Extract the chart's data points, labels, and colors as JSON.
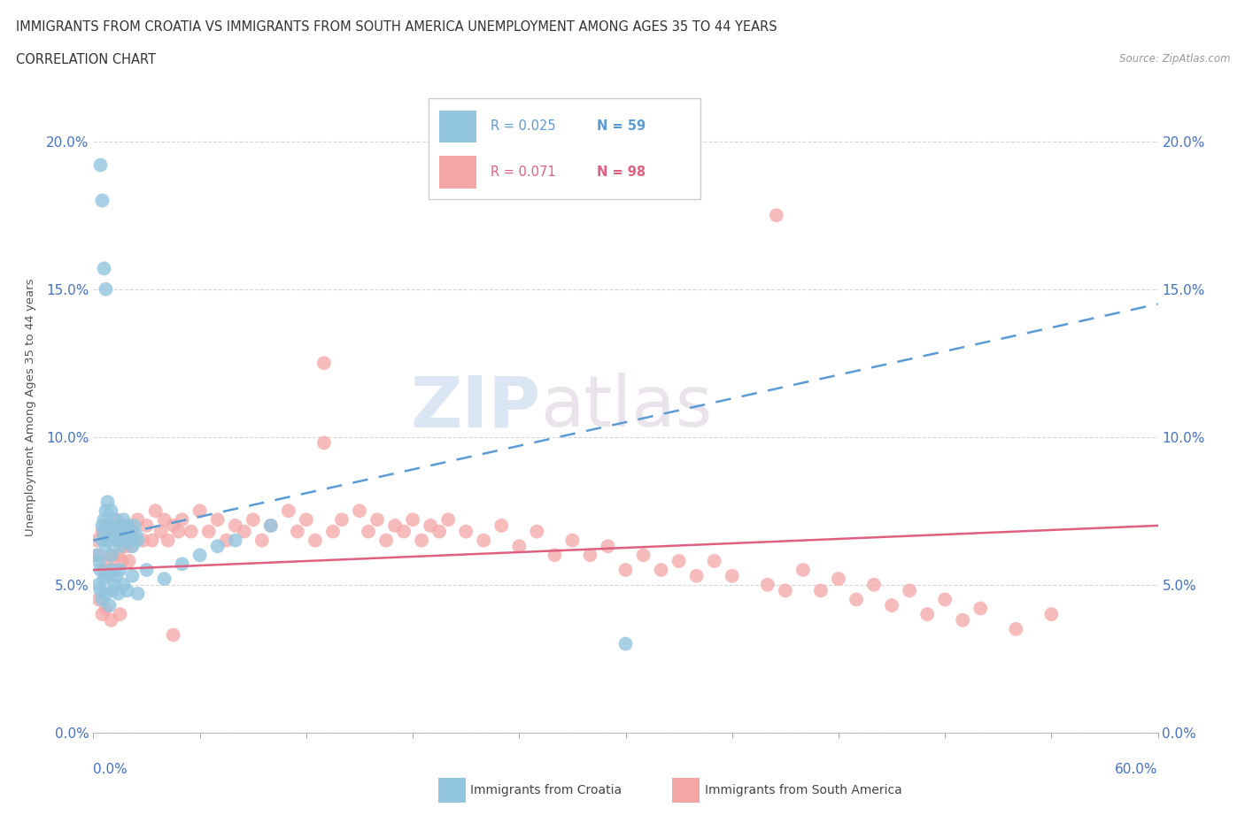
{
  "title_line1": "IMMIGRANTS FROM CROATIA VS IMMIGRANTS FROM SOUTH AMERICA UNEMPLOYMENT AMONG AGES 35 TO 44 YEARS",
  "title_line2": "CORRELATION CHART",
  "source_text": "Source: ZipAtlas.com",
  "ylabel": "Unemployment Among Ages 35 to 44 years",
  "legend_croatia": "Immigrants from Croatia",
  "legend_south_america": "Immigrants from South America",
  "r_croatia": "0.025",
  "n_croatia": "59",
  "r_south_america": "0.071",
  "n_south_america": "98",
  "croatia_color": "#92c5de",
  "south_america_color": "#f4a6a6",
  "croatia_line_color": "#5b9bd5",
  "south_america_line_color": "#e06080",
  "xlim": [
    0.0,
    0.6
  ],
  "ylim": [
    0.0,
    0.22
  ],
  "yticks": [
    0.0,
    0.05,
    0.1,
    0.15,
    0.2
  ],
  "ytick_labels": [
    "0.0%",
    "5.0%",
    "10.0%",
    "15.0%",
    "20.0%"
  ],
  "cr_line_x0": 0.0,
  "cr_line_y0": 0.065,
  "cr_line_x1": 0.6,
  "cr_line_y1": 0.145,
  "sa_line_x0": 0.0,
  "sa_line_y0": 0.055,
  "sa_line_x1": 0.6,
  "sa_line_y1": 0.07,
  "cr_x": [
    0.002,
    0.003,
    0.004,
    0.005,
    0.005,
    0.006,
    0.006,
    0.007,
    0.007,
    0.008,
    0.008,
    0.009,
    0.01,
    0.01,
    0.011,
    0.012,
    0.013,
    0.014,
    0.015,
    0.015,
    0.016,
    0.017,
    0.018,
    0.019,
    0.02,
    0.021,
    0.022,
    0.023,
    0.024,
    0.025,
    0.003,
    0.004,
    0.005,
    0.006,
    0.007,
    0.008,
    0.009,
    0.01,
    0.011,
    0.012,
    0.013,
    0.014,
    0.015,
    0.017,
    0.019,
    0.022,
    0.025,
    0.03,
    0.04,
    0.05,
    0.06,
    0.07,
    0.08,
    0.1,
    0.004,
    0.005,
    0.006,
    0.007,
    0.3
  ],
  "cr_y": [
    0.06,
    0.058,
    0.055,
    0.07,
    0.065,
    0.072,
    0.068,
    0.075,
    0.063,
    0.078,
    0.065,
    0.07,
    0.06,
    0.075,
    0.067,
    0.072,
    0.068,
    0.065,
    0.07,
    0.063,
    0.068,
    0.072,
    0.065,
    0.07,
    0.068,
    0.065,
    0.063,
    0.07,
    0.067,
    0.065,
    0.05,
    0.048,
    0.045,
    0.052,
    0.047,
    0.053,
    0.043,
    0.055,
    0.048,
    0.05,
    0.053,
    0.047,
    0.055,
    0.05,
    0.048,
    0.053,
    0.047,
    0.055,
    0.052,
    0.057,
    0.06,
    0.063,
    0.065,
    0.07,
    0.192,
    0.18,
    0.157,
    0.15,
    0.03
  ],
  "sa_x": [
    0.002,
    0.003,
    0.005,
    0.006,
    0.007,
    0.008,
    0.009,
    0.01,
    0.011,
    0.012,
    0.013,
    0.014,
    0.015,
    0.016,
    0.017,
    0.018,
    0.019,
    0.02,
    0.021,
    0.022,
    0.025,
    0.028,
    0.03,
    0.033,
    0.035,
    0.038,
    0.04,
    0.042,
    0.045,
    0.048,
    0.05,
    0.055,
    0.06,
    0.065,
    0.07,
    0.075,
    0.08,
    0.085,
    0.09,
    0.095,
    0.1,
    0.11,
    0.115,
    0.12,
    0.125,
    0.13,
    0.135,
    0.14,
    0.15,
    0.155,
    0.16,
    0.165,
    0.17,
    0.175,
    0.18,
    0.185,
    0.19,
    0.195,
    0.2,
    0.21,
    0.22,
    0.23,
    0.24,
    0.25,
    0.26,
    0.27,
    0.28,
    0.29,
    0.3,
    0.31,
    0.32,
    0.33,
    0.34,
    0.35,
    0.36,
    0.38,
    0.39,
    0.4,
    0.41,
    0.42,
    0.43,
    0.44,
    0.45,
    0.46,
    0.47,
    0.48,
    0.49,
    0.5,
    0.52,
    0.54,
    0.003,
    0.005,
    0.007,
    0.01,
    0.015,
    0.385,
    0.13,
    0.045
  ],
  "sa_y": [
    0.065,
    0.06,
    0.068,
    0.055,
    0.07,
    0.058,
    0.065,
    0.06,
    0.068,
    0.055,
    0.072,
    0.06,
    0.065,
    0.058,
    0.07,
    0.063,
    0.068,
    0.058,
    0.063,
    0.068,
    0.072,
    0.065,
    0.07,
    0.065,
    0.075,
    0.068,
    0.072,
    0.065,
    0.07,
    0.068,
    0.072,
    0.068,
    0.075,
    0.068,
    0.072,
    0.065,
    0.07,
    0.068,
    0.072,
    0.065,
    0.07,
    0.075,
    0.068,
    0.072,
    0.065,
    0.125,
    0.068,
    0.072,
    0.075,
    0.068,
    0.072,
    0.065,
    0.07,
    0.068,
    0.072,
    0.065,
    0.07,
    0.068,
    0.072,
    0.068,
    0.065,
    0.07,
    0.063,
    0.068,
    0.06,
    0.065,
    0.06,
    0.063,
    0.055,
    0.06,
    0.055,
    0.058,
    0.053,
    0.058,
    0.053,
    0.05,
    0.048,
    0.055,
    0.048,
    0.052,
    0.045,
    0.05,
    0.043,
    0.048,
    0.04,
    0.045,
    0.038,
    0.042,
    0.035,
    0.04,
    0.045,
    0.04,
    0.042,
    0.038,
    0.04,
    0.175,
    0.098,
    0.033
  ]
}
